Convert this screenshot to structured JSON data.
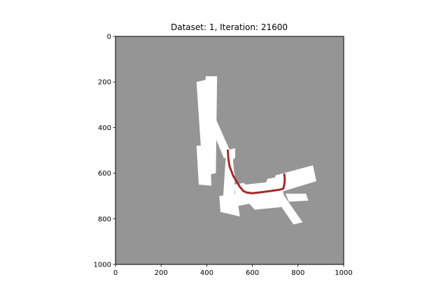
{
  "chart_data": {
    "type": "heatmap",
    "title": "Dataset: 1, Iteration: 21600",
    "xlabel": "",
    "ylabel": "",
    "xlim": [
      0,
      1000
    ],
    "ylim": [
      1000,
      0
    ],
    "x_ticks": [
      {
        "value": 0,
        "label": "0"
      },
      {
        "value": 200,
        "label": "200"
      },
      {
        "value": 400,
        "label": "400"
      },
      {
        "value": 600,
        "label": "600"
      },
      {
        "value": 800,
        "label": "800"
      },
      {
        "value": 1000,
        "label": "1000"
      }
    ],
    "y_ticks": [
      {
        "value": 0,
        "label": "0"
      },
      {
        "value": 200,
        "label": "200"
      },
      {
        "value": 400,
        "label": "400"
      },
      {
        "value": 600,
        "label": "600"
      },
      {
        "value": 800,
        "label": "800"
      },
      {
        "value": 1000,
        "label": "1000"
      }
    ],
    "grid": false,
    "colors": {
      "unknown": "#959595",
      "free_space": "#ffffff",
      "obstacle": "#000000",
      "trajectory": "#a52a2a"
    },
    "free_regions": [
      {
        "name": "beam-left-diagonal",
        "points": [
          [
            360,
            255
          ],
          [
            385,
            240
          ],
          [
            510,
            520
          ],
          [
            475,
            535
          ]
        ]
      },
      {
        "name": "room-upper-left",
        "points": [
          [
            355,
            200
          ],
          [
            420,
            185
          ],
          [
            440,
            480
          ],
          [
            375,
            500
          ]
        ]
      },
      {
        "name": "room-upper-right",
        "points": [
          [
            395,
            175
          ],
          [
            445,
            175
          ],
          [
            440,
            600
          ],
          [
            390,
            610
          ]
        ]
      },
      {
        "name": "room-center",
        "points": [
          [
            355,
            480
          ],
          [
            415,
            475
          ],
          [
            420,
            655
          ],
          [
            365,
            650
          ]
        ]
      },
      {
        "name": "corridor-left",
        "points": [
          [
            485,
            500
          ],
          [
            525,
            490
          ],
          [
            520,
            750
          ],
          [
            470,
            735
          ]
        ]
      },
      {
        "name": "patch-lower-left",
        "points": [
          [
            455,
            700
          ],
          [
            530,
            690
          ],
          [
            545,
            790
          ],
          [
            460,
            770
          ]
        ]
      },
      {
        "name": "spur-lower-right",
        "points": [
          [
            695,
            700
          ],
          [
            740,
            700
          ],
          [
            820,
            815
          ],
          [
            780,
            825
          ]
        ]
      },
      {
        "name": "beam-right",
        "points": [
          [
            700,
            610
          ],
          [
            865,
            565
          ],
          [
            880,
            635
          ],
          [
            700,
            690
          ]
        ]
      },
      {
        "name": "patch-lower-center",
        "points": [
          [
            560,
            705
          ],
          [
            700,
            690
          ],
          [
            760,
            745
          ],
          [
            610,
            760
          ]
        ]
      },
      {
        "name": "floor-bottom",
        "points": [
          [
            520,
            650
          ],
          [
            720,
            615
          ],
          [
            740,
            705
          ],
          [
            530,
            745
          ]
        ]
      },
      {
        "name": "wedge-right-lower",
        "points": [
          [
            745,
            690
          ],
          [
            835,
            690
          ],
          [
            845,
            720
          ],
          [
            760,
            725
          ]
        ]
      }
    ],
    "occupied_region": {
      "name": "enclosed-unknown-area",
      "points": [
        [
          515,
          540
        ],
        [
          565,
          505
        ],
        [
          640,
          505
        ],
        [
          690,
          560
        ],
        [
          660,
          640
        ],
        [
          570,
          650
        ],
        [
          520,
          600
        ]
      ]
    },
    "trajectory": {
      "x": [
        492,
        495,
        500,
        515,
        530,
        545,
        560,
        575,
        600,
        640,
        680,
        720,
        735,
        740,
        742,
        740
      ],
      "y": [
        500,
        540,
        570,
        610,
        635,
        660,
        678,
        685,
        688,
        683,
        678,
        672,
        668,
        650,
        625,
        605
      ]
    }
  }
}
